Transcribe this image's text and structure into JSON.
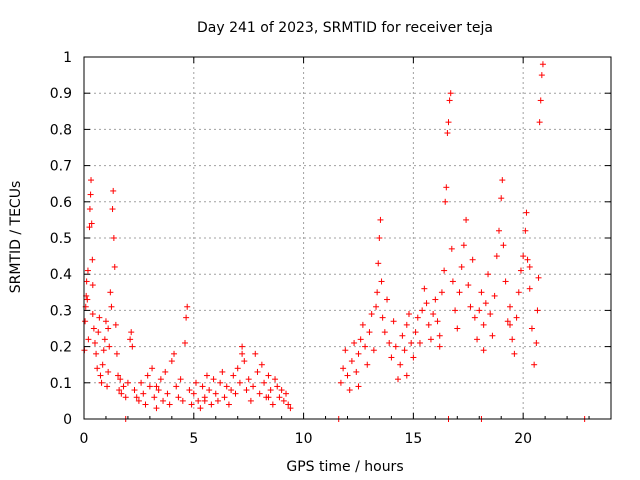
{
  "chart_data": {
    "type": "scatter",
    "title": "Day 241 of 2023, SRMTID for receiver teja",
    "xlabel": "GPS time / hours",
    "ylabel": "SRMTID / TECUs",
    "xlim": [
      0,
      24
    ],
    "ylim": [
      0,
      1
    ],
    "x_ticks": [
      0,
      5,
      10,
      15,
      20
    ],
    "x_tick_labels": [
      "0",
      "5",
      "10",
      "15",
      "20"
    ],
    "y_ticks": [
      0,
      0.1,
      0.2,
      0.3,
      0.4,
      0.5,
      0.6,
      0.7,
      0.8,
      0.9,
      1
    ],
    "y_tick_labels": [
      "0",
      "0.1",
      "0.2",
      "0.3",
      "0.4",
      "0.5",
      "0.6",
      "0.7",
      "0.8",
      "0.9",
      "1"
    ],
    "grid": true,
    "marker": "plus",
    "marker_color": "#ff0000",
    "series": [
      {
        "name": "SRMTID",
        "points": [
          [
            0.02,
            0.19
          ],
          [
            0.05,
            0.27
          ],
          [
            0.08,
            0.31
          ],
          [
            0.1,
            0.34
          ],
          [
            0.12,
            0.38
          ],
          [
            0.15,
            0.33
          ],
          [
            0.18,
            0.41
          ],
          [
            0.2,
            0.22
          ],
          [
            0.25,
            0.53
          ],
          [
            0.27,
            0.58
          ],
          [
            0.3,
            0.62
          ],
          [
            0.32,
            0.66
          ],
          [
            0.35,
            0.54
          ],
          [
            0.38,
            0.44
          ],
          [
            0.4,
            0.29
          ],
          [
            0.45,
            0.25
          ],
          [
            0.5,
            0.21
          ],
          [
            0.55,
            0.18
          ],
          [
            0.6,
            0.14
          ],
          [
            0.65,
            0.24
          ],
          [
            0.7,
            0.28
          ],
          [
            0.75,
            0.12
          ],
          [
            0.8,
            0.1
          ],
          [
            0.85,
            0.15
          ],
          [
            0.9,
            0.19
          ],
          [
            0.95,
            0.22
          ],
          [
            1.0,
            0.27
          ],
          [
            1.05,
            0.09
          ],
          [
            1.1,
            0.13
          ],
          [
            1.15,
            0.2
          ],
          [
            1.2,
            0.35
          ],
          [
            1.25,
            0.31
          ],
          [
            1.3,
            0.58
          ],
          [
            1.33,
            0.63
          ],
          [
            1.36,
            0.5
          ],
          [
            1.4,
            0.42
          ],
          [
            1.45,
            0.26
          ],
          [
            1.5,
            0.18
          ],
          [
            1.55,
            0.12
          ],
          [
            1.6,
            0.08
          ],
          [
            1.65,
            0.11
          ],
          [
            1.7,
            0.07
          ],
          [
            1.8,
            0.09
          ],
          [
            1.9,
            0.06
          ],
          [
            2.0,
            0.1
          ],
          [
            2.1,
            0.22
          ],
          [
            2.15,
            0.24
          ],
          [
            2.2,
            0.2
          ],
          [
            2.3,
            0.08
          ],
          [
            2.4,
            0.06
          ],
          [
            2.5,
            0.05
          ],
          [
            2.6,
            0.1
          ],
          [
            2.7,
            0.07
          ],
          [
            2.8,
            0.04
          ],
          [
            2.9,
            0.12
          ],
          [
            3.0,
            0.09
          ],
          [
            3.1,
            0.14
          ],
          [
            3.2,
            0.06
          ],
          [
            3.3,
            0.03
          ],
          [
            3.4,
            0.08
          ],
          [
            3.5,
            0.11
          ],
          [
            3.6,
            0.05
          ],
          [
            3.7,
            0.13
          ],
          [
            3.8,
            0.07
          ],
          [
            3.9,
            0.04
          ],
          [
            4.0,
            0.16
          ],
          [
            4.1,
            0.18
          ],
          [
            4.2,
            0.09
          ],
          [
            4.3,
            0.06
          ],
          [
            4.4,
            0.11
          ],
          [
            4.5,
            0.05
          ],
          [
            4.6,
            0.21
          ],
          [
            4.65,
            0.28
          ],
          [
            4.7,
            0.31
          ],
          [
            4.8,
            0.08
          ],
          [
            4.9,
            0.04
          ],
          [
            5.0,
            0.07
          ],
          [
            5.1,
            0.1
          ],
          [
            5.2,
            0.05
          ],
          [
            5.3,
            0.03
          ],
          [
            5.4,
            0.09
          ],
          [
            5.5,
            0.06
          ],
          [
            5.6,
            0.12
          ],
          [
            5.7,
            0.08
          ],
          [
            5.8,
            0.04
          ],
          [
            5.9,
            0.11
          ],
          [
            6.0,
            0.07
          ],
          [
            6.1,
            0.05
          ],
          [
            6.2,
            0.1
          ],
          [
            6.3,
            0.13
          ],
          [
            6.4,
            0.06
          ],
          [
            6.5,
            0.09
          ],
          [
            6.6,
            0.04
          ],
          [
            6.7,
            0.08
          ],
          [
            6.8,
            0.12
          ],
          [
            6.9,
            0.07
          ],
          [
            7.0,
            0.14
          ],
          [
            7.1,
            0.1
          ],
          [
            7.2,
            0.2
          ],
          [
            7.3,
            0.16
          ],
          [
            7.4,
            0.08
          ],
          [
            7.5,
            0.11
          ],
          [
            7.6,
            0.05
          ],
          [
            7.7,
            0.09
          ],
          [
            7.8,
            0.18
          ],
          [
            7.9,
            0.13
          ],
          [
            8.0,
            0.07
          ],
          [
            8.1,
            0.15
          ],
          [
            8.2,
            0.1
          ],
          [
            8.3,
            0.06
          ],
          [
            8.4,
            0.12
          ],
          [
            8.5,
            0.08
          ],
          [
            8.6,
            0.04
          ],
          [
            8.7,
            0.11
          ],
          [
            8.8,
            0.09
          ],
          [
            8.9,
            0.06
          ],
          [
            9.0,
            0.08
          ],
          [
            9.1,
            0.05
          ],
          [
            9.2,
            0.07
          ],
          [
            9.3,
            0.04
          ],
          [
            9.4,
            0.03
          ],
          [
            11.7,
            0.1
          ],
          [
            11.8,
            0.14
          ],
          [
            11.9,
            0.19
          ],
          [
            12.0,
            0.12
          ],
          [
            12.1,
            0.08
          ],
          [
            12.2,
            0.16
          ],
          [
            12.3,
            0.21
          ],
          [
            12.4,
            0.13
          ],
          [
            12.5,
            0.18
          ],
          [
            12.6,
            0.22
          ],
          [
            12.7,
            0.26
          ],
          [
            12.8,
            0.2
          ],
          [
            12.9,
            0.15
          ],
          [
            13.0,
            0.24
          ],
          [
            13.1,
            0.29
          ],
          [
            13.2,
            0.19
          ],
          [
            13.3,
            0.31
          ],
          [
            13.35,
            0.35
          ],
          [
            13.4,
            0.43
          ],
          [
            13.45,
            0.5
          ],
          [
            13.5,
            0.55
          ],
          [
            13.55,
            0.38
          ],
          [
            13.6,
            0.28
          ],
          [
            13.7,
            0.24
          ],
          [
            13.8,
            0.33
          ],
          [
            13.9,
            0.21
          ],
          [
            14.0,
            0.17
          ],
          [
            14.1,
            0.27
          ],
          [
            14.2,
            0.2
          ],
          [
            14.3,
            0.11
          ],
          [
            14.4,
            0.15
          ],
          [
            14.5,
            0.23
          ],
          [
            14.6,
            0.19
          ],
          [
            14.7,
            0.26
          ],
          [
            14.8,
            0.29
          ],
          [
            14.9,
            0.21
          ],
          [
            15.0,
            0.17
          ],
          [
            15.1,
            0.24
          ],
          [
            15.2,
            0.28
          ],
          [
            15.3,
            0.21
          ],
          [
            15.4,
            0.3
          ],
          [
            15.5,
            0.36
          ],
          [
            15.6,
            0.32
          ],
          [
            15.7,
            0.26
          ],
          [
            15.8,
            0.22
          ],
          [
            15.9,
            0.29
          ],
          [
            16.0,
            0.33
          ],
          [
            16.1,
            0.27
          ],
          [
            16.2,
            0.23
          ],
          [
            16.3,
            0.35
          ],
          [
            16.4,
            0.41
          ],
          [
            16.45,
            0.6
          ],
          [
            16.5,
            0.64
          ],
          [
            16.55,
            0.79
          ],
          [
            16.6,
            0.82
          ],
          [
            16.65,
            0.88
          ],
          [
            16.7,
            0.9
          ],
          [
            16.75,
            0.47
          ],
          [
            16.8,
            0.38
          ],
          [
            16.9,
            0.3
          ],
          [
            17.0,
            0.25
          ],
          [
            17.1,
            0.35
          ],
          [
            17.2,
            0.42
          ],
          [
            17.3,
            0.48
          ],
          [
            17.4,
            0.55
          ],
          [
            17.5,
            0.37
          ],
          [
            17.6,
            0.31
          ],
          [
            17.7,
            0.44
          ],
          [
            17.8,
            0.28
          ],
          [
            17.9,
            0.22
          ],
          [
            18.0,
            0.3
          ],
          [
            18.1,
            0.35
          ],
          [
            18.2,
            0.26
          ],
          [
            18.3,
            0.32
          ],
          [
            18.4,
            0.4
          ],
          [
            18.5,
            0.29
          ],
          [
            18.6,
            0.23
          ],
          [
            18.7,
            0.34
          ],
          [
            18.8,
            0.45
          ],
          [
            18.9,
            0.52
          ],
          [
            19.0,
            0.61
          ],
          [
            19.05,
            0.66
          ],
          [
            19.1,
            0.48
          ],
          [
            19.2,
            0.38
          ],
          [
            19.3,
            0.27
          ],
          [
            19.4,
            0.31
          ],
          [
            19.5,
            0.22
          ],
          [
            19.6,
            0.18
          ],
          [
            19.7,
            0.28
          ],
          [
            19.8,
            0.35
          ],
          [
            19.9,
            0.41
          ],
          [
            20.0,
            0.45
          ],
          [
            20.1,
            0.52
          ],
          [
            20.15,
            0.57
          ],
          [
            20.2,
            0.44
          ],
          [
            20.3,
            0.36
          ],
          [
            20.4,
            0.25
          ],
          [
            20.5,
            0.15
          ],
          [
            20.6,
            0.21
          ],
          [
            20.65,
            0.3
          ],
          [
            20.7,
            0.39
          ],
          [
            20.75,
            0.82
          ],
          [
            20.8,
            0.88
          ],
          [
            20.85,
            0.95
          ],
          [
            20.9,
            0.98
          ],
          [
            0.4,
            0.37
          ],
          [
            1.1,
            0.25
          ],
          [
            3.3,
            0.09
          ],
          [
            5.5,
            0.05
          ],
          [
            7.2,
            0.18
          ],
          [
            8.4,
            0.06
          ],
          [
            12.5,
            0.09
          ],
          [
            14.7,
            0.12
          ],
          [
            16.2,
            0.2
          ],
          [
            18.2,
            0.19
          ],
          [
            19.4,
            0.26
          ],
          [
            20.3,
            0.42
          ]
        ]
      }
    ],
    "zero_markers_x": [
      1.9,
      11.6,
      16.6,
      18.1,
      22.8
    ]
  }
}
